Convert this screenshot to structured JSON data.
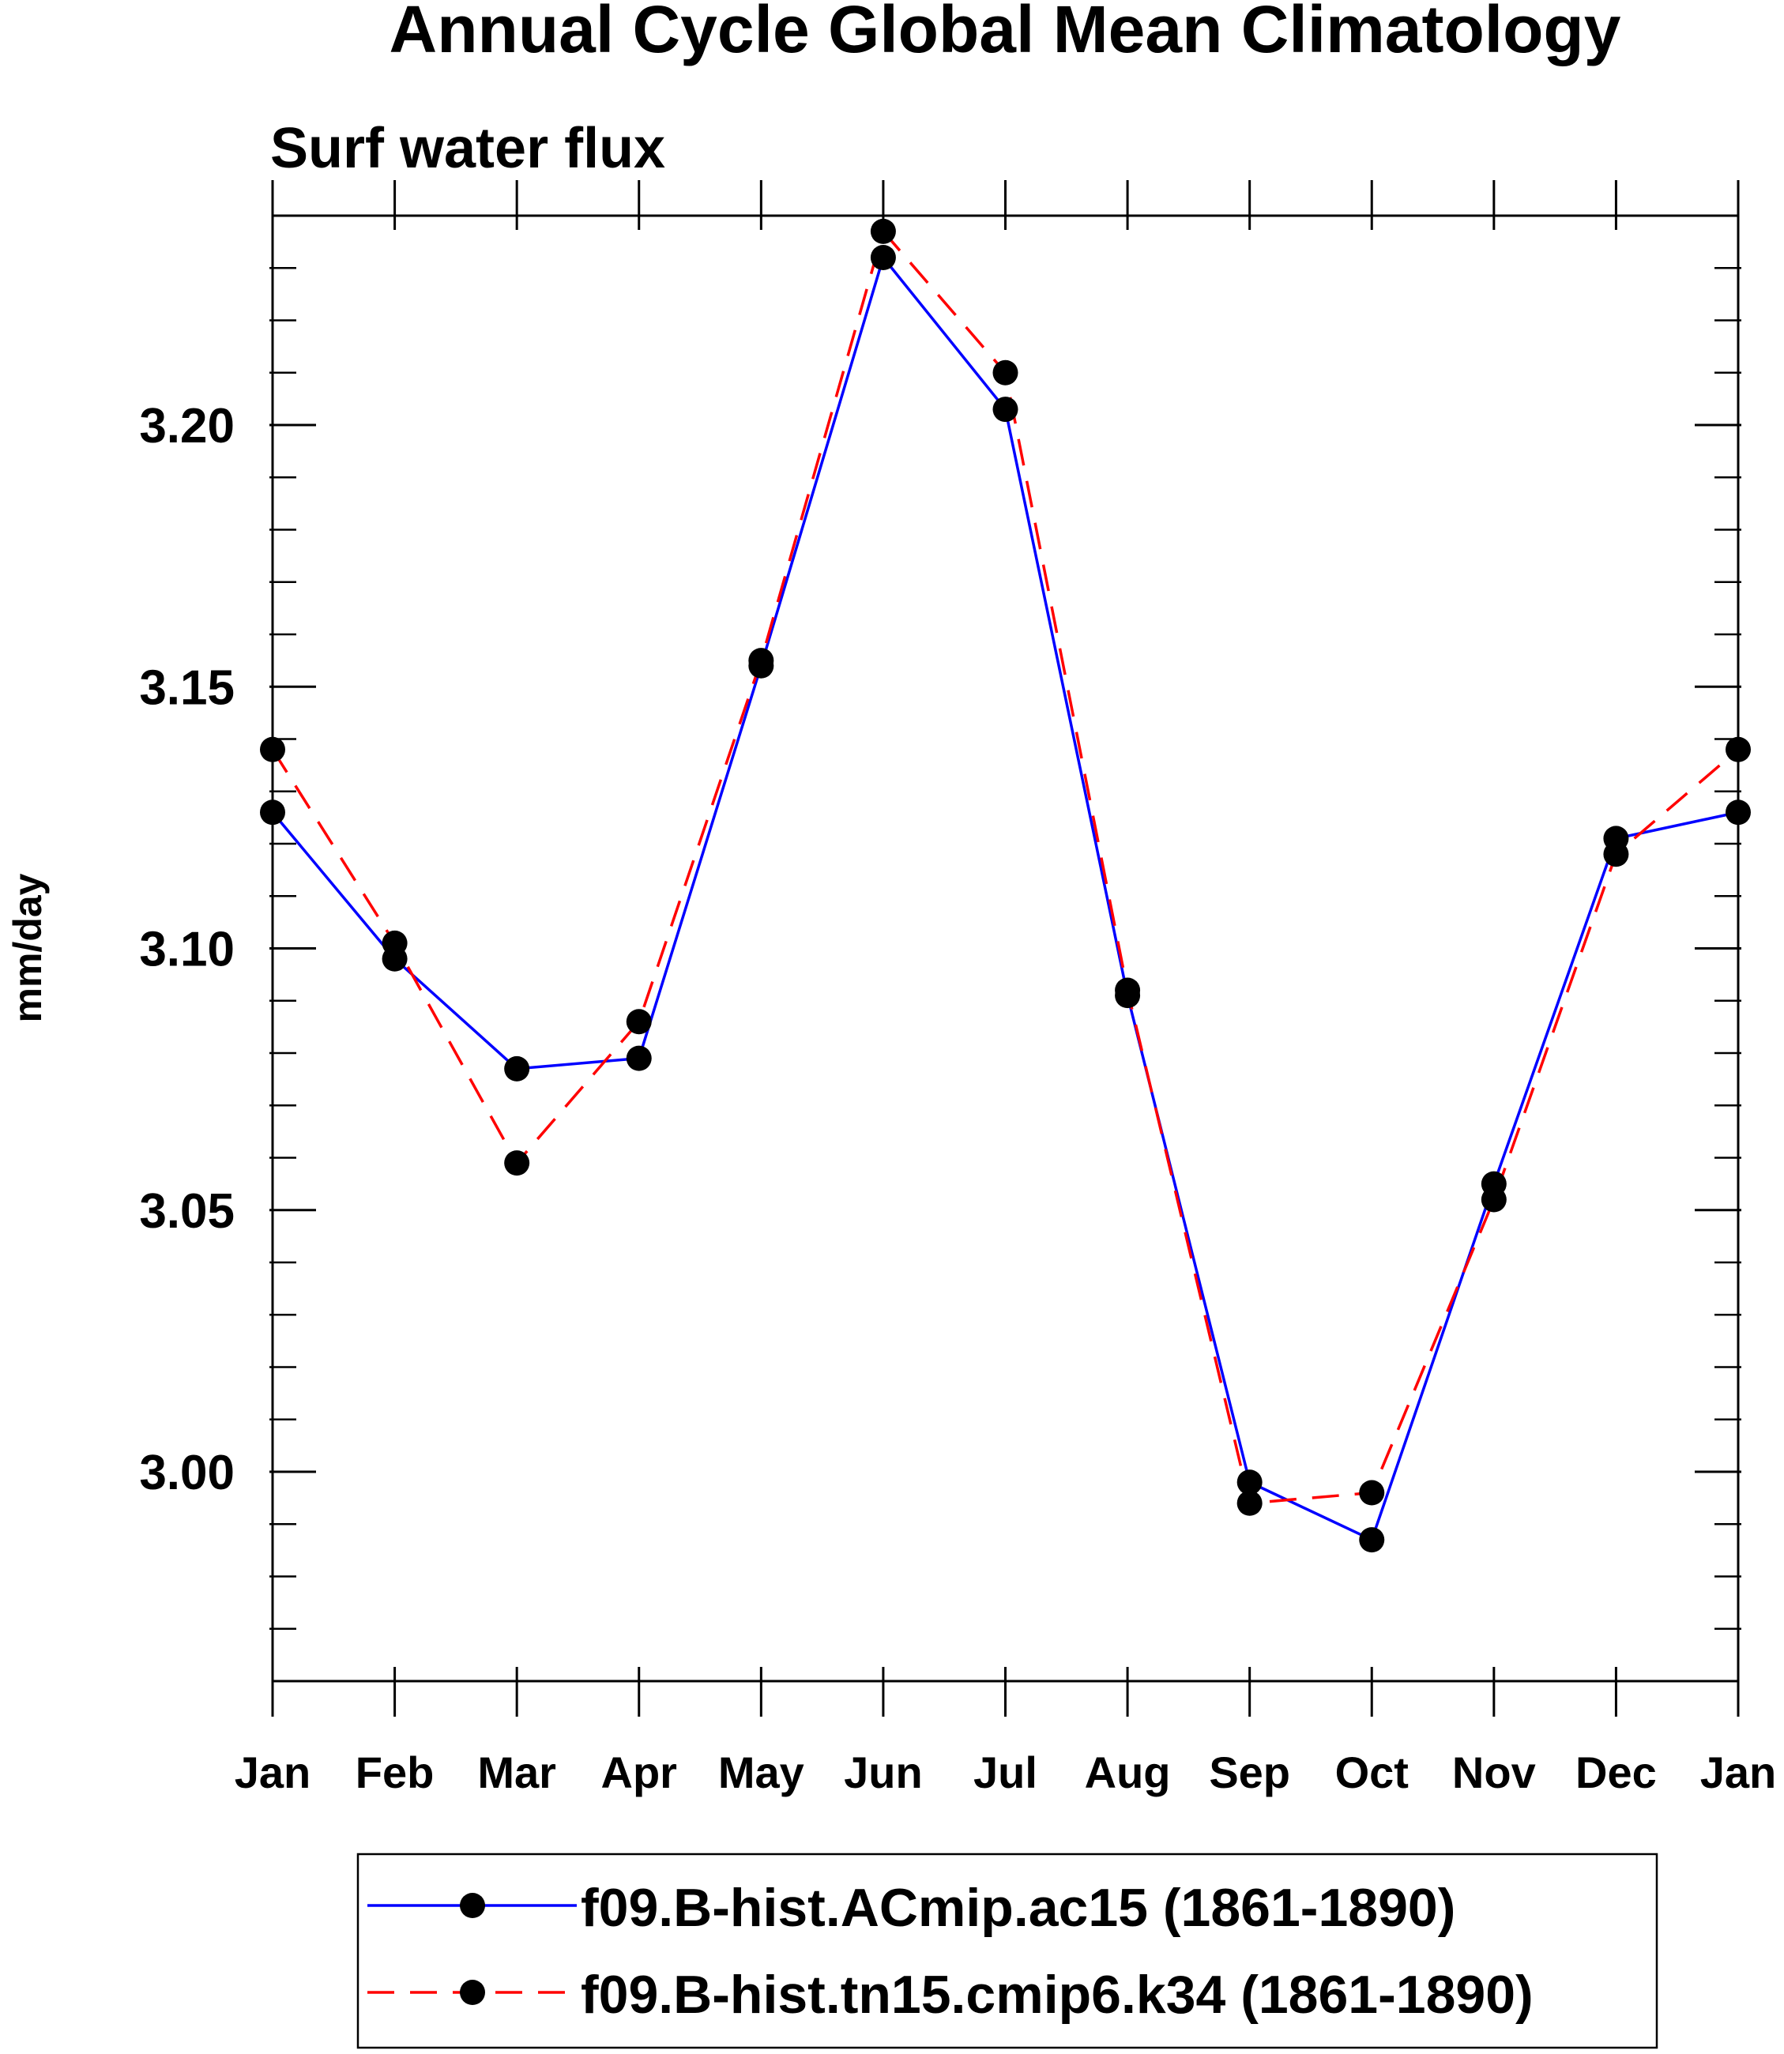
{
  "chart_data": {
    "type": "line",
    "title": "Annual Cycle Global Mean Climatology",
    "subtitle": "Surf water flux",
    "xlabel": "",
    "ylabel": "mm/day",
    "categories": [
      "Jan",
      "Feb",
      "Mar",
      "Apr",
      "May",
      "Jun",
      "Jul",
      "Aug",
      "Sep",
      "Oct",
      "Nov",
      "Dec",
      "Jan"
    ],
    "ylim": [
      2.96,
      3.24
    ],
    "yticks": [
      3.0,
      3.05,
      3.1,
      3.15,
      3.2
    ],
    "ytick_labels": [
      "3.00",
      "3.05",
      "3.10",
      "3.15",
      "3.20"
    ],
    "minor_ystep": 0.01,
    "grid": false,
    "legend_position": "bottom",
    "series": [
      {
        "name": "f09.B-hist.ACmip.ac15 (1861-1890)",
        "color": "#0000ff",
        "line_style": "solid",
        "marker": "filled-circle",
        "values": [
          3.126,
          3.098,
          3.077,
          3.079,
          3.154,
          3.232,
          3.203,
          3.091,
          2.998,
          2.987,
          3.055,
          3.121,
          3.126
        ]
      },
      {
        "name": "f09.B-hist.tn15.cmip6.k34 (1861-1890)",
        "color": "#ff0000",
        "line_style": "dashed",
        "marker": "filled-circle",
        "values": [
          3.138,
          3.101,
          3.059,
          3.086,
          3.155,
          3.237,
          3.21,
          3.092,
          2.994,
          2.996,
          3.052,
          3.118,
          3.138
        ]
      }
    ]
  }
}
